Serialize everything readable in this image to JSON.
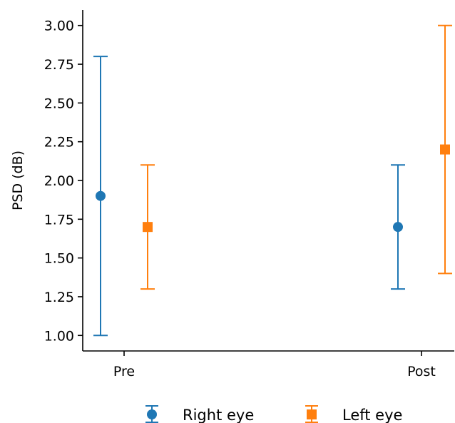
{
  "chart_data": {
    "type": "scatter",
    "title": "",
    "xlabel": "",
    "ylabel": "PSD (dB)",
    "categories": [
      "Pre",
      "Post"
    ],
    "ylim": [
      0.9,
      3.1
    ],
    "yticks": [
      "1.00",
      "1.25",
      "1.50",
      "1.75",
      "2.00",
      "2.25",
      "2.50",
      "2.75",
      "3.00"
    ],
    "grid": false,
    "legend_position": "bottom-center",
    "series": [
      {
        "name": "Right eye",
        "color": "#1f77b4",
        "marker": "circle",
        "values": [
          1.9,
          1.7
        ],
        "lower": [
          1.0,
          1.3
        ],
        "upper": [
          2.8,
          2.1
        ]
      },
      {
        "name": "Left eye",
        "color": "#ff7f0e",
        "marker": "square",
        "values": [
          1.7,
          2.2
        ],
        "lower": [
          1.3,
          1.4
        ],
        "upper": [
          2.1,
          3.0
        ]
      }
    ]
  }
}
